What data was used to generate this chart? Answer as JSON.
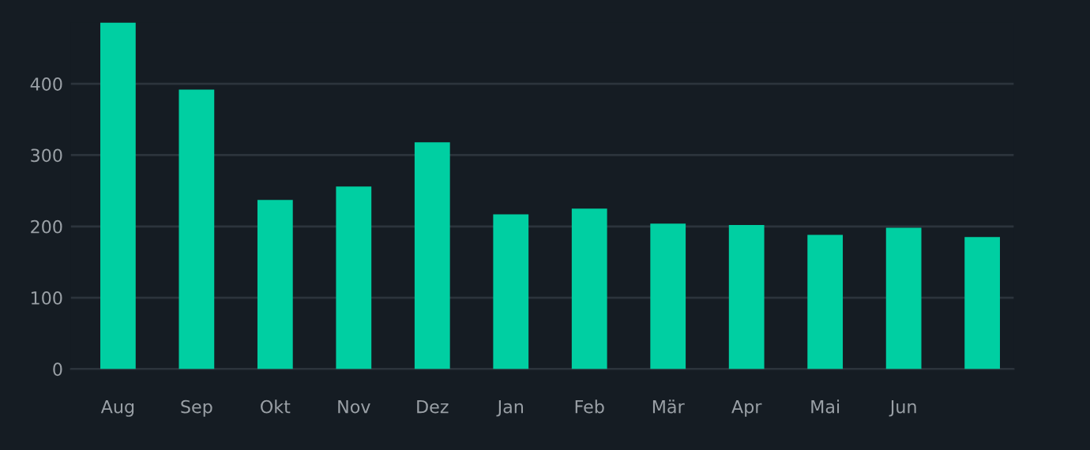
{
  "chart_data": {
    "type": "bar",
    "categories": [
      "Aug",
      "Sep",
      "Okt",
      "Nov",
      "Dez",
      "Jan",
      "Feb",
      "Mär",
      "Apr",
      "Mai",
      "Jun",
      null
    ],
    "values": [
      486,
      392,
      237,
      256,
      318,
      217,
      225,
      204,
      202,
      188,
      198,
      185
    ],
    "color": "#00cfa2",
    "ylim": [
      0,
      486
    ],
    "yticks": [
      0,
      100,
      200,
      300,
      400
    ],
    "grid": "y"
  }
}
